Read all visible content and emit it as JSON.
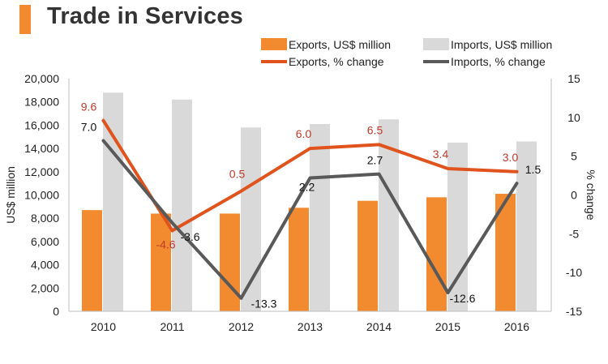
{
  "header": {
    "title": "Trade in Services"
  },
  "colors": {
    "accent": "#f28a30",
    "exports_bar": "#f28a30",
    "imports_bar": "#d9d9d9",
    "exports_line": "#e0531c",
    "imports_line": "#595959",
    "exports_label": "#c0392b",
    "imports_label": "#111111"
  },
  "chart_data": {
    "type": "bar+line",
    "title": "Trade in Services",
    "categories": [
      "2010",
      "2011",
      "2012",
      "2013",
      "2014",
      "2015",
      "2016"
    ],
    "series": [
      {
        "name": "Exports, US$ million",
        "type": "bar",
        "axis": "left",
        "values": [
          8700,
          8400,
          8400,
          8900,
          9500,
          9800,
          10100
        ]
      },
      {
        "name": "Imports, US$ million",
        "type": "bar",
        "axis": "left",
        "values": [
          18800,
          18200,
          15800,
          16100,
          16500,
          14500,
          14600
        ]
      },
      {
        "name": "Exports, % change",
        "type": "line",
        "axis": "right",
        "values": [
          9.6,
          -4.6,
          0.5,
          6.0,
          6.5,
          3.4,
          3.0
        ],
        "labels": [
          "9.6",
          "-4.6",
          "0.5",
          "6.0",
          "6.5",
          "3.4",
          "3.0"
        ]
      },
      {
        "name": "Imports, % change",
        "type": "line",
        "axis": "right",
        "values": [
          7.0,
          -3.6,
          -13.3,
          2.2,
          2.7,
          -12.6,
          1.5
        ],
        "labels": [
          "7.0",
          "-3.6",
          "-13.3",
          "2.2",
          "2.7",
          "-12.6",
          "1.5"
        ]
      }
    ],
    "ylabel": "US$ million",
    "ylim": [
      0,
      20000
    ],
    "yticks": [
      0,
      2000,
      4000,
      6000,
      8000,
      10000,
      12000,
      14000,
      16000,
      18000,
      20000
    ],
    "ytick_labels": [
      "0",
      "2,000",
      "4,000",
      "6,000",
      "8,000",
      "10,000",
      "12,000",
      "14,000",
      "16,000",
      "18,000",
      "20,000"
    ],
    "y2label": "% change",
    "y2lim": [
      -15,
      15
    ],
    "y2ticks": [
      -15,
      -10,
      -5,
      0,
      5,
      10,
      15
    ],
    "y2tick_labels": [
      "-15",
      "-10",
      "-5",
      "0",
      "5",
      "10",
      "15"
    ],
    "legend_position": "top-right",
    "grid": false
  }
}
